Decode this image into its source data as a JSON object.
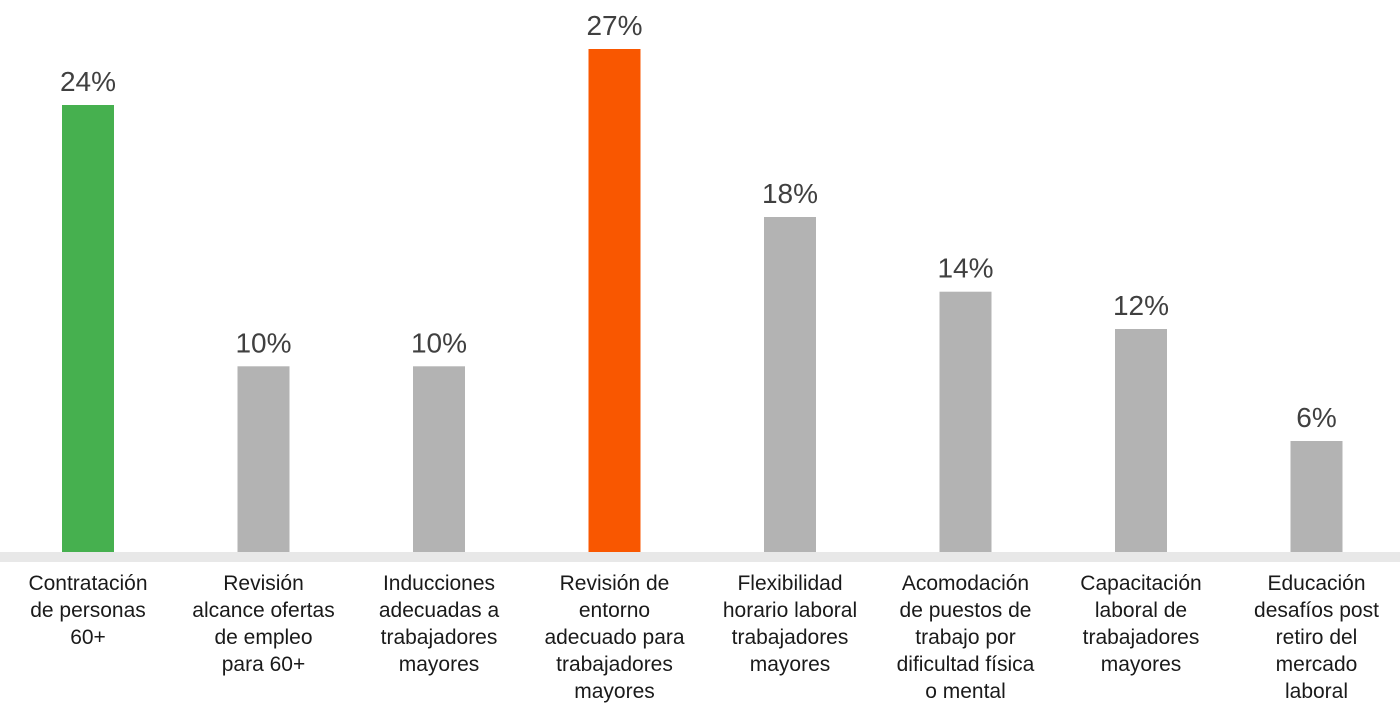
{
  "chart_data": {
    "type": "bar",
    "categories": [
      [
        "Contratación",
        "de personas",
        "60+"
      ],
      [
        "Revisión",
        "alcance ofertas",
        "de empleo",
        "para 60+"
      ],
      [
        "Inducciones",
        "adecuadas a",
        "trabajadores",
        "mayores"
      ],
      [
        "Revisión de",
        "entorno",
        "adecuado para",
        "trabajadores",
        "mayores"
      ],
      [
        "Flexibilidad",
        "horario laboral",
        "trabajadores",
        "mayores"
      ],
      [
        "Acomodación",
        "de puestos de",
        "trabajo por",
        "dificultad física",
        "o mental"
      ],
      [
        "Capacitación",
        "laboral de",
        "trabajadores",
        "mayores"
      ],
      [
        "Educación",
        "desafíos post",
        "retiro del",
        "mercado",
        "laboral"
      ]
    ],
    "values": [
      24,
      10,
      10,
      27,
      18,
      14,
      12,
      6
    ],
    "data_labels": [
      "24%",
      "10%",
      "10%",
      "27%",
      "18%",
      "14%",
      "12%",
      "6%"
    ],
    "colors": [
      "#46b04f",
      "#b3b3b3",
      "#b3b3b3",
      "#f95700",
      "#b3b3b3",
      "#b3b3b3",
      "#b3b3b3",
      "#b3b3b3"
    ],
    "baseline_color": "#e8e8e8",
    "ylim": [
      0,
      27
    ],
    "grid": false,
    "title": "",
    "xlabel": "",
    "ylabel": ""
  }
}
